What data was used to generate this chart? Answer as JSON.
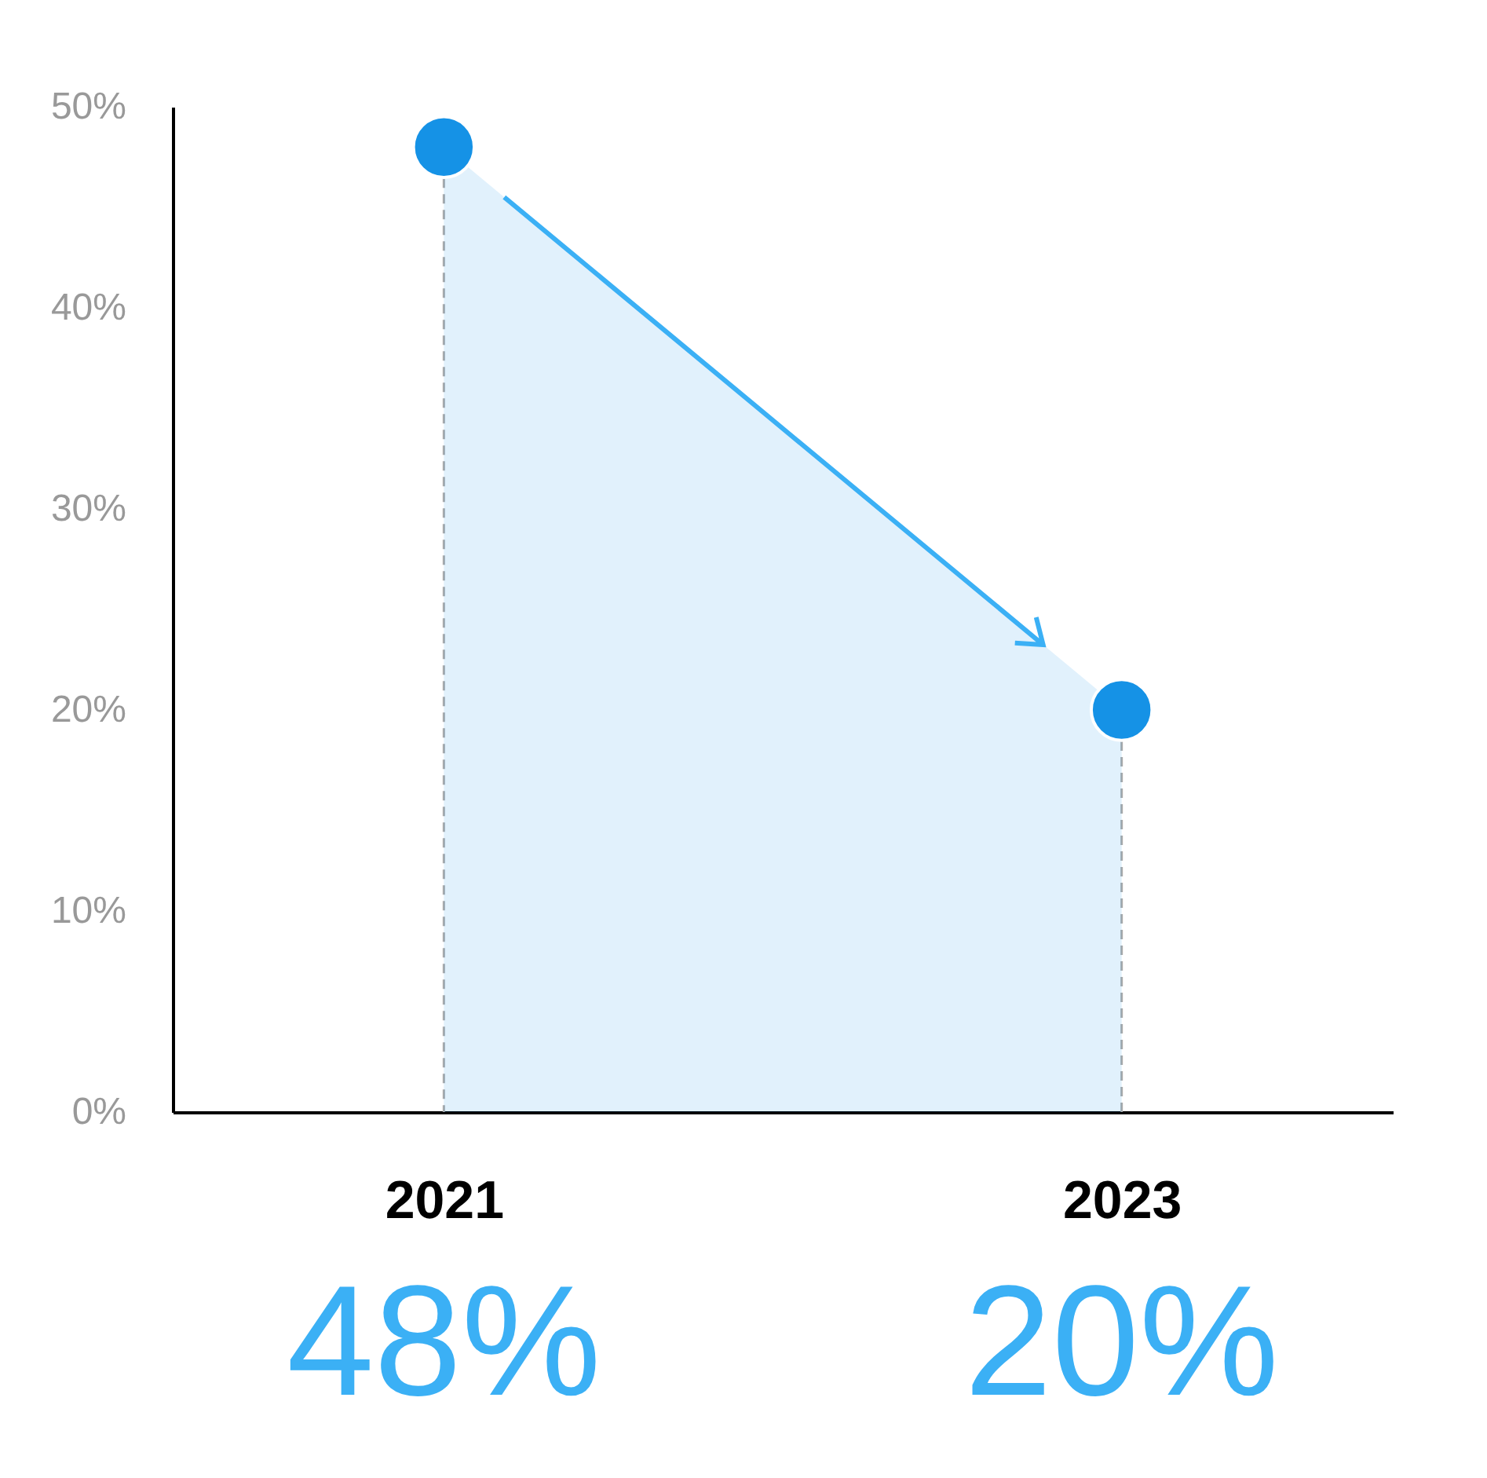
{
  "chart_data": {
    "type": "area",
    "categories": [
      "2021",
      "2023"
    ],
    "series": [
      {
        "color": "#1592e6",
        "values": [
          48,
          20
        ],
        "value_labels": [
          "48%",
          "20%"
        ]
      }
    ],
    "ylim": [
      0,
      50
    ],
    "yticks": [
      {
        "value": 0,
        "label": "0%"
      },
      {
        "value": 10,
        "label": "10%"
      },
      {
        "value": 20,
        "label": "20%"
      },
      {
        "value": 30,
        "label": "30%"
      },
      {
        "value": 40,
        "label": "40%"
      },
      {
        "value": 50,
        "label": "50%"
      }
    ],
    "marker": "circle",
    "grid": false,
    "ref_lines": [
      {
        "axis": "x",
        "value": "2021",
        "line_style": "dashed",
        "color": "#aaaaaa"
      },
      {
        "axis": "x",
        "value": "2023",
        "line_style": "dashed",
        "color": "#aaaaaa"
      }
    ]
  }
}
